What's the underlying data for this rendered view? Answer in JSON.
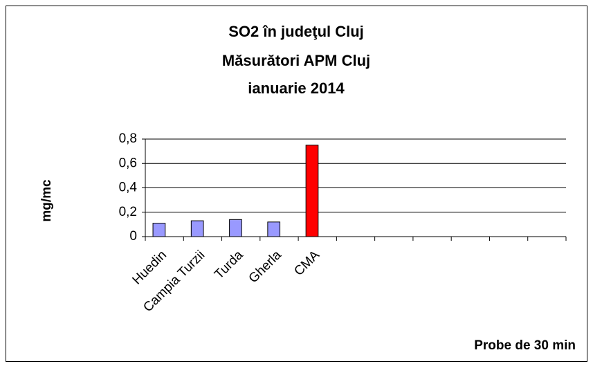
{
  "chart_data": {
    "type": "bar",
    "title": [
      "SO2 în judeţul Cluj",
      "Măsurători APM Cluj",
      "ianuarie 2014"
    ],
    "y_label": "mg/mc",
    "x_label": "Probe de 30 min",
    "categories": [
      "Huedin",
      "Campia Turzii",
      "Turda",
      "Gherla",
      "CMA",
      null,
      null,
      null,
      null,
      null,
      null
    ],
    "values": [
      0.11,
      0.13,
      0.14,
      0.12,
      0.75,
      null,
      null,
      null,
      null,
      null,
      null
    ],
    "colors": [
      "#9999ff",
      "#9999ff",
      "#9999ff",
      "#9999ff",
      "#ff0000",
      null,
      null,
      null,
      null,
      null,
      null
    ],
    "ylim": [
      0,
      0.8
    ],
    "yticks": [
      0,
      {
        "value": 0.2,
        "label": "0,2"
      },
      {
        "value": 0.4,
        "label": "0,4"
      },
      {
        "value": 0.6,
        "label": "0,6"
      },
      {
        "value": 0.8,
        "label": "0,8"
      }
    ],
    "grid": true
  }
}
